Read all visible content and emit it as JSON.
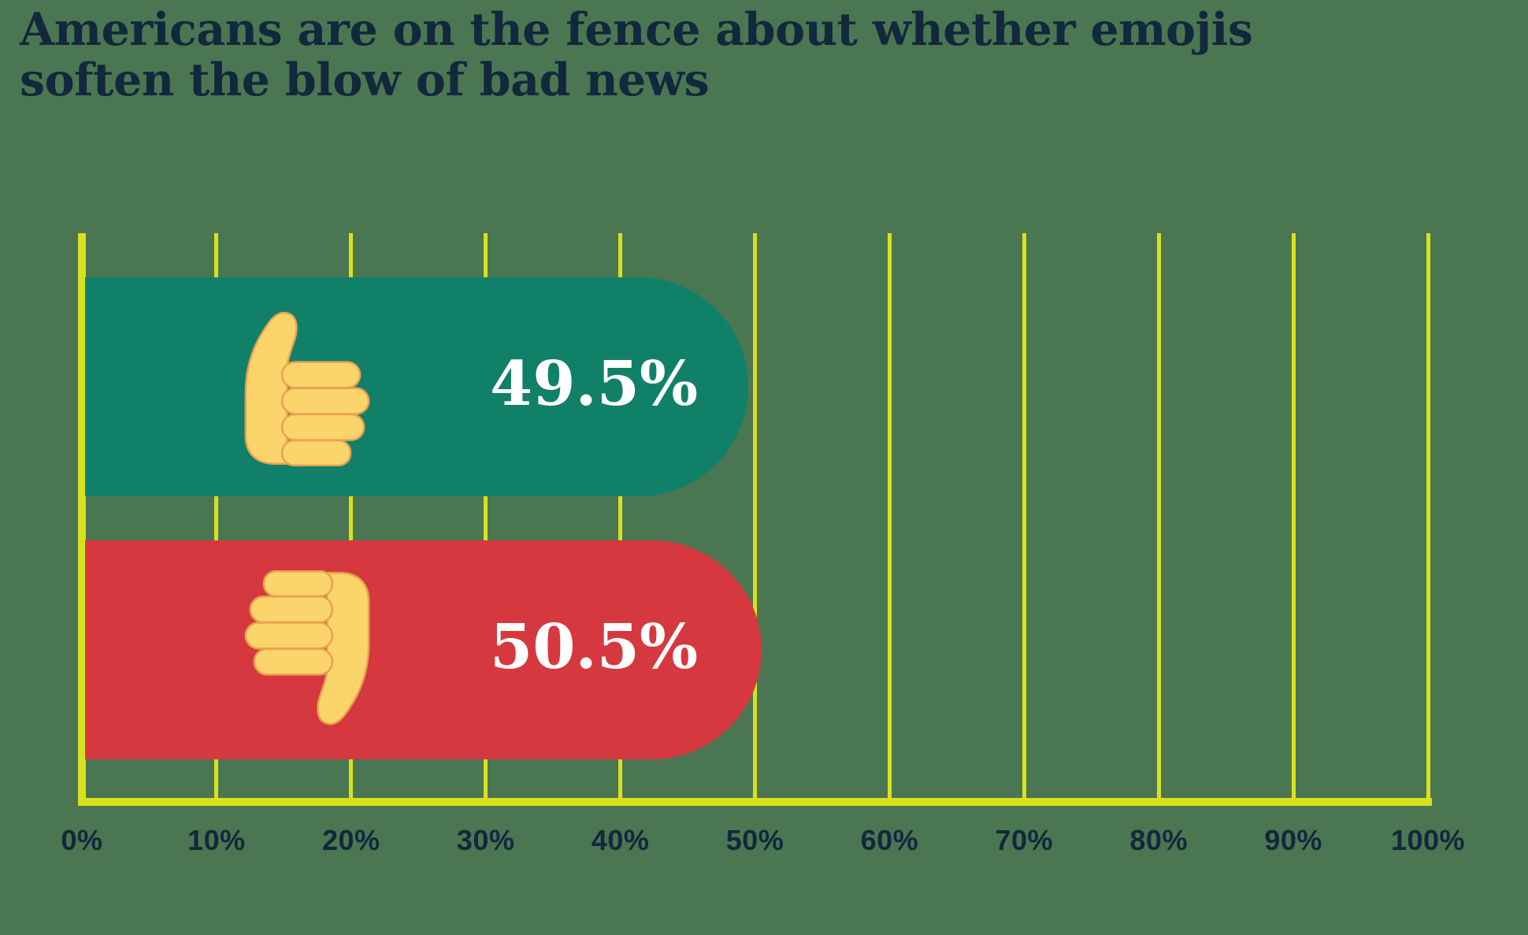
{
  "title": {
    "lines": [
      "Americans are on the fence about whether emojis",
      "soften the blow of bad news"
    ]
  },
  "chart_data": {
    "type": "bar",
    "orientation": "horizontal",
    "title": "Americans are on the fence about whether emojis soften the blow of bad news",
    "categories": [
      "softens the blow (thumbs up)",
      "does not soften the blow (thumbs down)"
    ],
    "bars": [
      {
        "icon": "thumbs-up-icon",
        "value": 49.5,
        "label": "49.5%",
        "color": "#118069"
      },
      {
        "icon": "thumbs-down-icon",
        "value": 50.5,
        "label": "50.5%",
        "color": "#D5393F"
      }
    ],
    "xlabel": "",
    "ylabel": "",
    "xlim": [
      0,
      100
    ],
    "x_ticks": [
      "0%",
      "10%",
      "20%",
      "30%",
      "40%",
      "50%",
      "60%",
      "70%",
      "80%",
      "90%",
      "100%"
    ],
    "grid": "vertical",
    "legend": "none",
    "colors": {
      "background": "#4B7652",
      "gridline": "#D8E11C",
      "axis": "#D8E11C",
      "title_text": "#12283C",
      "tick_text": "#12283C",
      "bar_label_text": "#FFFFFF",
      "emoji_fill": "#FBD56C",
      "emoji_outline": "#E8A24D"
    }
  }
}
